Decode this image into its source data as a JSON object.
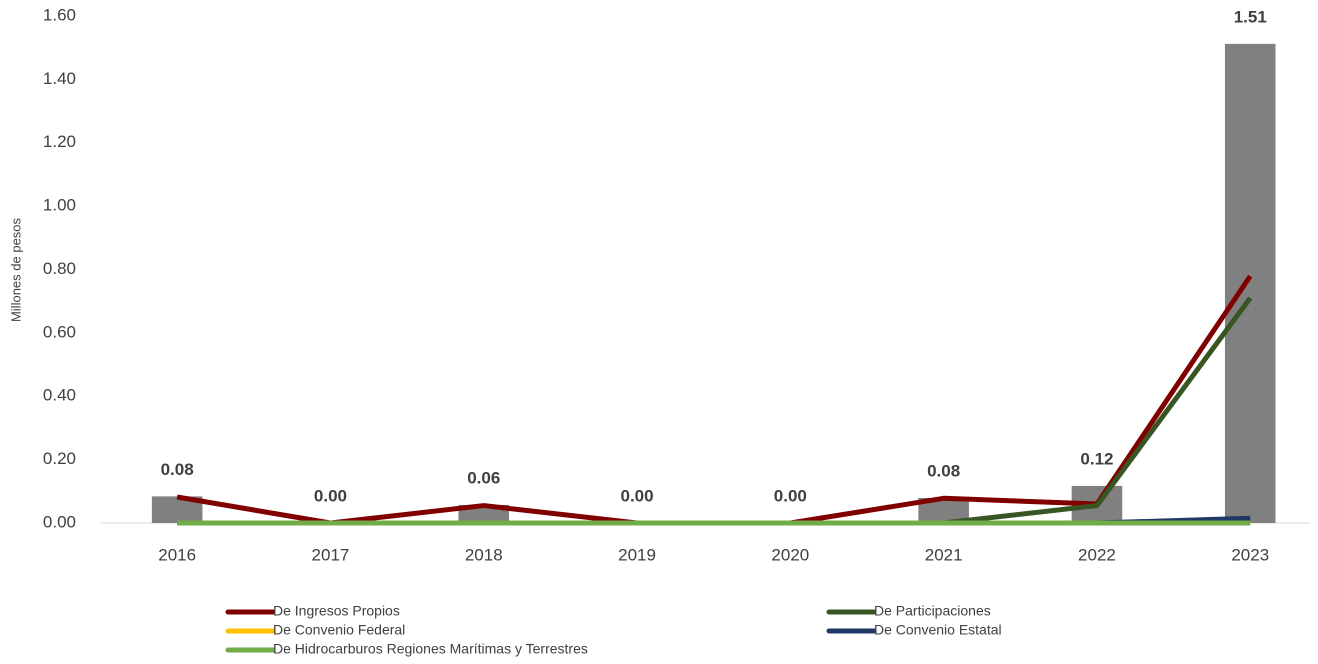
{
  "chart_data": {
    "type": "bar",
    "ylabel": "Millones de pesos",
    "categories": [
      "2016",
      "2017",
      "2018",
      "2019",
      "2020",
      "2021",
      "2022",
      "2023"
    ],
    "values": [
      0.084,
      0.0,
      0.057,
      0.0,
      0.0,
      0.079,
      0.117,
      1.512
    ],
    "value_labels": [
      "0.08",
      "0.00",
      "0.06",
      "0.00",
      "0.00",
      "0.08",
      "0.12",
      "1.51"
    ],
    "color": "#808080",
    "ylim": [
      0,
      1.6
    ],
    "yticks": [
      {
        "value": 0,
        "label": "0.00"
      },
      {
        "value": 0.2,
        "label": "0.20"
      },
      {
        "value": 0.4,
        "label": "0.40"
      },
      {
        "value": 0.6,
        "label": "0.60"
      },
      {
        "value": 0.8,
        "label": "0.80"
      },
      {
        "value": 1.0,
        "label": "1.00"
      },
      {
        "value": 1.2,
        "label": "1.20"
      },
      {
        "value": 1.4,
        "label": "1.40"
      },
      {
        "value": 1.6,
        "label": "1.60"
      }
    ],
    "series": [
      {
        "name": "De Ingresos Propios",
        "type": "line",
        "color": "#800000",
        "values": [
          0.082,
          0.0,
          0.055,
          0.0,
          0.0,
          0.078,
          0.06,
          0.779
        ]
      },
      {
        "name": "De Participaciones",
        "type": "line",
        "color": "#375623",
        "values": [
          0.0,
          0.0,
          0.0,
          0.0,
          0.0,
          0.0,
          0.055,
          0.71
        ]
      },
      {
        "name": "De Convenio Federal",
        "type": "line",
        "color": "#ffc000",
        "values": [
          0.0,
          0.0,
          0.0,
          0.0,
          0.0,
          0.0,
          0.0,
          0.0
        ]
      },
      {
        "name": "De Convenio Estatal",
        "type": "line",
        "color": "#1f3864",
        "values": [
          0.0,
          0.0,
          0.0,
          0.0,
          0.0,
          0.0,
          0.0,
          0.015
        ]
      },
      {
        "name": "De Hidrocarburos Regiones Marítimas y Terrestres",
        "type": "line",
        "color": "#70ad47",
        "values": [
          0.0,
          0.0,
          0.0,
          0.0,
          0.0,
          0.0,
          0.0,
          0.0
        ]
      }
    ]
  }
}
